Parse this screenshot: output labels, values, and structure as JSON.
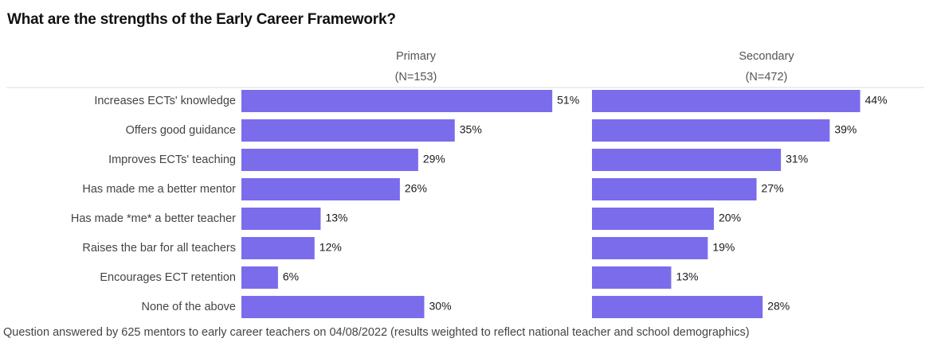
{
  "title": "What are the strengths of the Early Career Framework?",
  "footnote": "Question answered by 625 mentors to early career teachers on 04/08/2022 (results weighted to reflect national teacher and school demographics)",
  "colors": {
    "bar": "#7b6cec",
    "divider": "#dcdcdc"
  },
  "chart_data": {
    "type": "bar",
    "orientation": "horizontal",
    "categories": [
      "Increases ECTs' knowledge",
      "Offers good guidance",
      "Improves ECTs' teaching",
      "Has made me a better mentor",
      "Has made *me* a better teacher",
      "Raises the bar for all teachers",
      "Encourages ECT retention",
      "None of the above"
    ],
    "panels": [
      {
        "title": "Primary",
        "subtitle": "(N=153)",
        "values": [
          51,
          35,
          29,
          26,
          13,
          12,
          6,
          30
        ]
      },
      {
        "title": "Secondary",
        "subtitle": "(N=472)",
        "values": [
          44,
          39,
          31,
          27,
          20,
          19,
          13,
          28
        ]
      }
    ],
    "value_suffix": "%",
    "xlim": [
      0,
      70
    ],
    "grid": false,
    "legend": "none"
  }
}
